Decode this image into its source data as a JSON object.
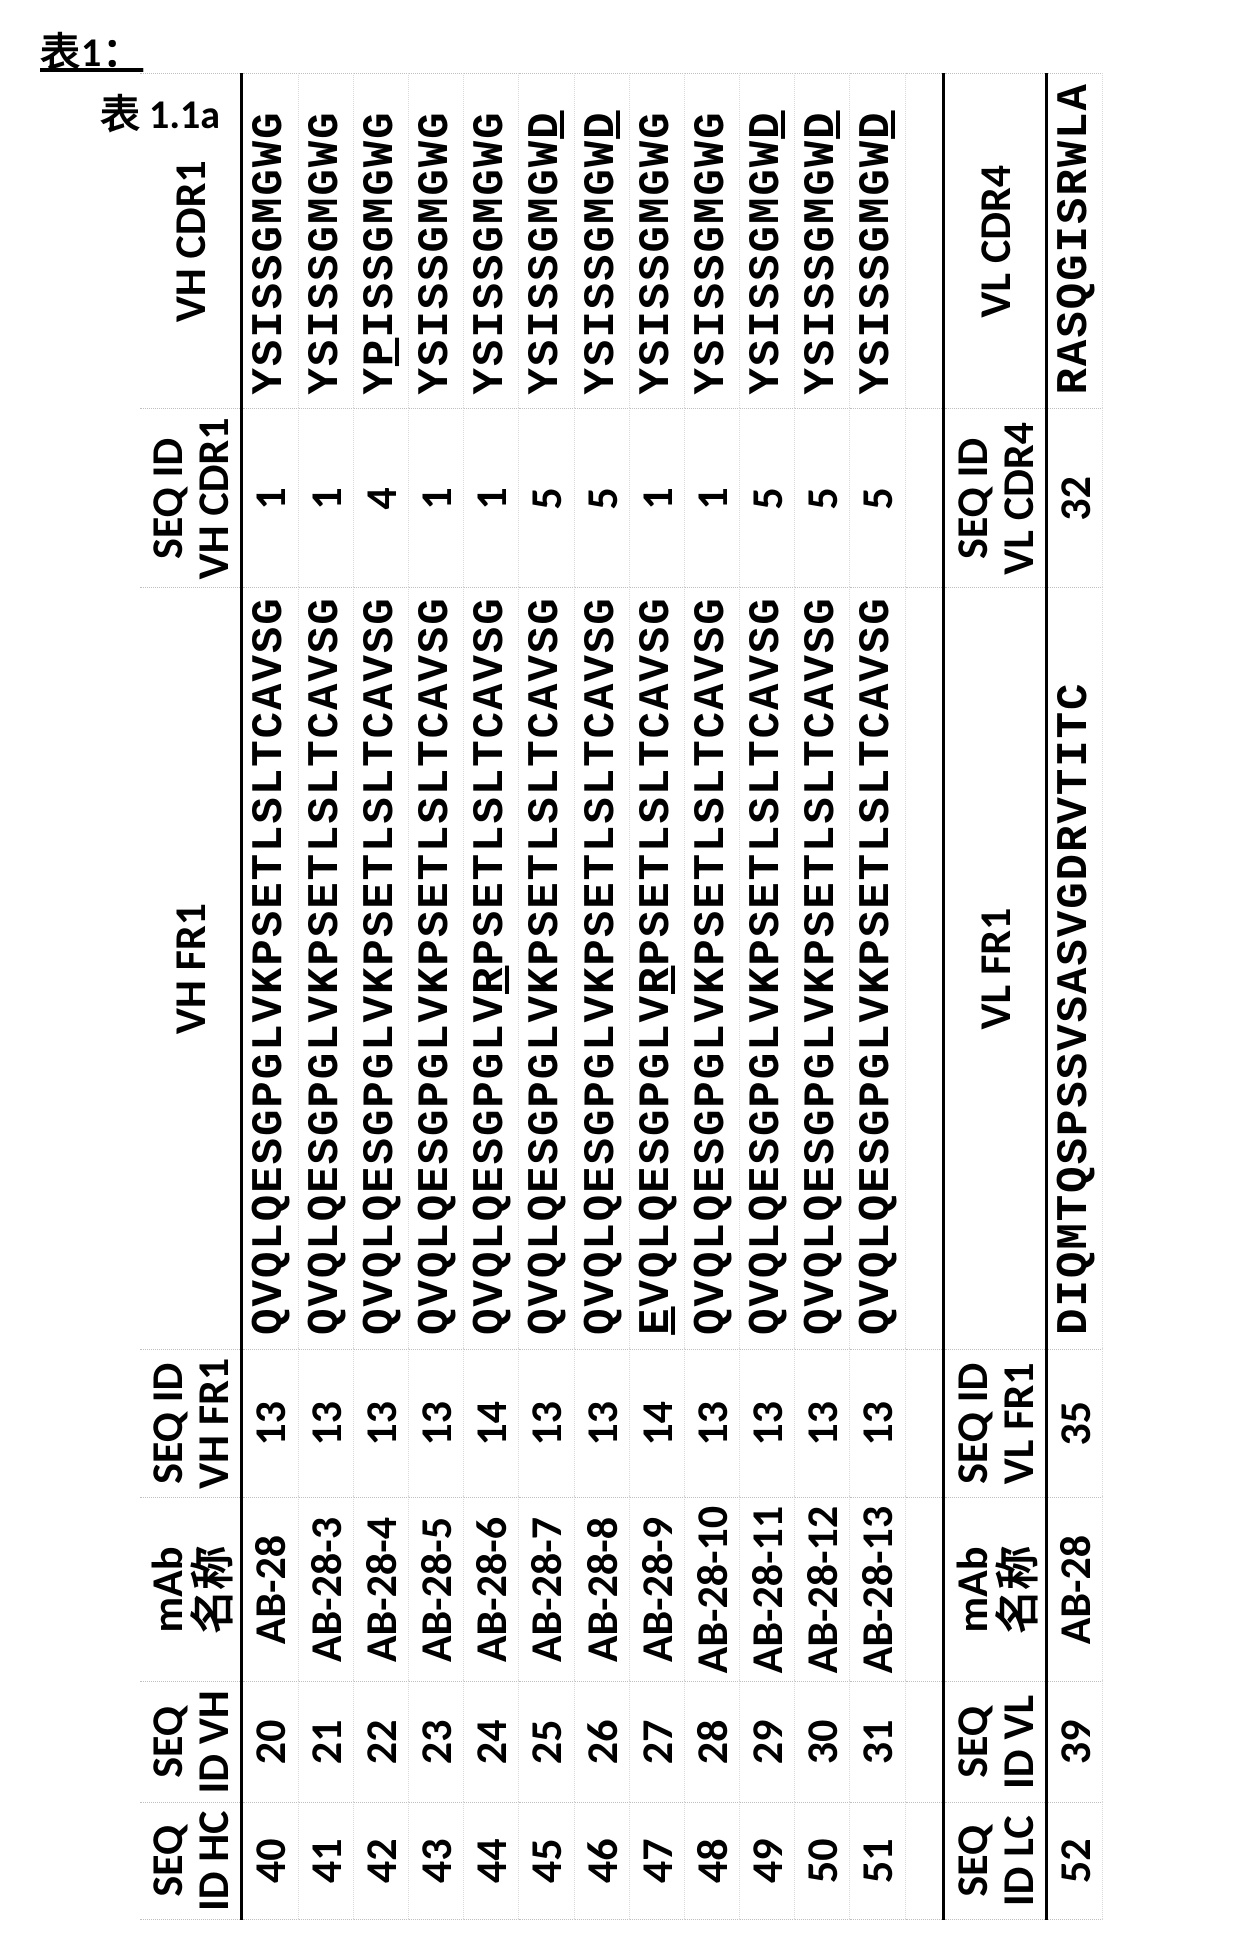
{
  "titles": {
    "main": "表1：",
    "sub": "表 1.1a"
  },
  "vh": {
    "headers": {
      "c1a": "SEQ",
      "c1b": "ID HC",
      "c2a": "SEQ",
      "c2b": "ID VH",
      "c3a": "mAb",
      "c3b": "名称",
      "c4a": "SEQ ID",
      "c4b": "VH FR1",
      "c5": "VH FR1",
      "c6a": "SEQ ID",
      "c6b": "VH CDR1",
      "c7": "VH CDR1"
    },
    "rows": [
      {
        "hc": "40",
        "vh": "20",
        "name": "AB-28",
        "fr1id": "13",
        "fr1": "QVQLQESGPGLVKPSETLSLTCAVSG",
        "cdr1id": "1",
        "cdr1": "YSISSGMGWG"
      },
      {
        "hc": "41",
        "vh": "21",
        "name": "AB-28-3",
        "fr1id": "13",
        "fr1": "QVQLQESGPGLVKPSETLSLTCAVSG",
        "cdr1id": "1",
        "cdr1": "YSISSGMGWG"
      },
      {
        "hc": "42",
        "vh": "22",
        "name": "AB-28-4",
        "fr1id": "13",
        "fr1": "QVQLQESGPGLVKPSETLSLTCAVSG",
        "cdr1id": "4",
        "cdr1": "Y<u>P</u>ISSGMGWG"
      },
      {
        "hc": "43",
        "vh": "23",
        "name": "AB-28-5",
        "fr1id": "13",
        "fr1": "QVQLQESGPGLVKPSETLSLTCAVSG",
        "cdr1id": "1",
        "cdr1": "YSISSGMGWG"
      },
      {
        "hc": "44",
        "vh": "24",
        "name": "AB-28-6",
        "fr1id": "14",
        "fr1": "QVQLQESGPGLV<u>R</u>PSETLSLTCAVSG",
        "cdr1id": "1",
        "cdr1": "YSISSGMGWG"
      },
      {
        "hc": "45",
        "vh": "25",
        "name": "AB-28-7",
        "fr1id": "13",
        "fr1": "QVQLQESGPGLVKPSETLSLTCAVSG",
        "cdr1id": "5",
        "cdr1": "YSISSGMGW<u>D</u>"
      },
      {
        "hc": "46",
        "vh": "26",
        "name": "AB-28-8",
        "fr1id": "13",
        "fr1": "QVQLQESGPGLVKPSETLSLTCAVSG",
        "cdr1id": "5",
        "cdr1": "YSISSGMGW<u>D</u>"
      },
      {
        "hc": "47",
        "vh": "27",
        "name": "AB-28-9",
        "fr1id": "14",
        "fr1": "<u>E</u>VQLQESGPGLV<u>R</u>PSETLSLTCAVSG",
        "cdr1id": "1",
        "cdr1": "YSISSGMGWG"
      },
      {
        "hc": "48",
        "vh": "28",
        "name": "AB-28-10",
        "fr1id": "13",
        "fr1": "QVQLQESGPGLVKPSETLSLTCAVSG",
        "cdr1id": "1",
        "cdr1": "YSISSGMGWG"
      },
      {
        "hc": "49",
        "vh": "29",
        "name": "AB-28-11",
        "fr1id": "13",
        "fr1": "QVQLQESGPGLVKPSETLSLTCAVSG",
        "cdr1id": "5",
        "cdr1": "YSISSGMGW<u>D</u>"
      },
      {
        "hc": "50",
        "vh": "30",
        "name": "AB-28-12",
        "fr1id": "13",
        "fr1": "QVQLQESGPGLVKPSETLSLTCAVSG",
        "cdr1id": "5",
        "cdr1": "YSISSGMGW<u>D</u>"
      },
      {
        "hc": "51",
        "vh": "31",
        "name": "AB-28-13",
        "fr1id": "13",
        "fr1": "QVQLQESGPGLVKPSETLSLTCAVSG",
        "cdr1id": "5",
        "cdr1": "YSISSGMGW<u>D</u>"
      }
    ]
  },
  "vl": {
    "headers": {
      "c1a": "SEQ",
      "c1b": "ID LC",
      "c2a": "SEQ",
      "c2b": "ID VL",
      "c3a": "mAb",
      "c3b": "名称",
      "c4a": "SEQ ID",
      "c4b": "VL FR1",
      "c5": "VL FR1",
      "c6a": "SEQ ID",
      "c6b": "VL CDR4",
      "c7": "VL CDR4"
    },
    "rows": [
      {
        "lc": "52",
        "vl": "39",
        "name": "AB-28",
        "fr1id": "35",
        "fr1": "DIQMTQSPSSVSASVGDRVTITC",
        "cdr1id": "32",
        "cdr1": "RASQGISRWLA"
      }
    ]
  }
}
